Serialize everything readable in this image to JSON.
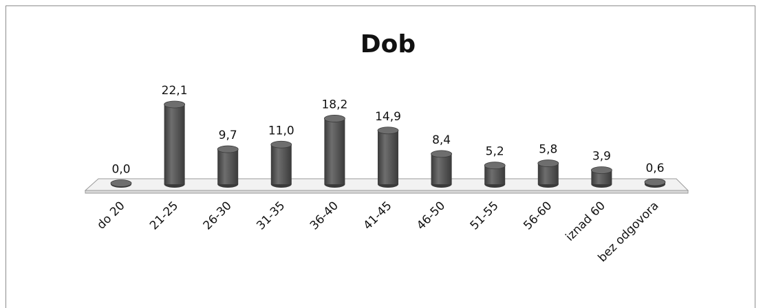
{
  "chart_data": {
    "type": "bar",
    "title": "Dob",
    "categories": [
      "do 20",
      "21-25",
      "26-30",
      "31-35",
      "36-40",
      "41-45",
      "46-50",
      "51-55",
      "56-60",
      "iznad 60",
      "bez odgovora"
    ],
    "values": [
      0.0,
      22.1,
      9.7,
      11.0,
      18.2,
      14.9,
      8.4,
      5.2,
      5.8,
      3.9,
      0.6
    ],
    "value_labels": [
      "0,0",
      "22,1",
      "9,7",
      "11,0",
      "18,2",
      "14,9",
      "8,4",
      "5,2",
      "5,8",
      "3,9",
      "0,6"
    ],
    "xlabel": "",
    "ylabel": "",
    "ylim": [
      0,
      25
    ],
    "grid": false,
    "legend": "none",
    "bar_style": "3d-cylinder",
    "colors": {
      "bar": "#505050",
      "bar_dark": "#3a3a3a",
      "bar_light": "#6e6e6e",
      "floor": "#f2f2f2",
      "floor_edge": "#9a9a9a"
    }
  }
}
